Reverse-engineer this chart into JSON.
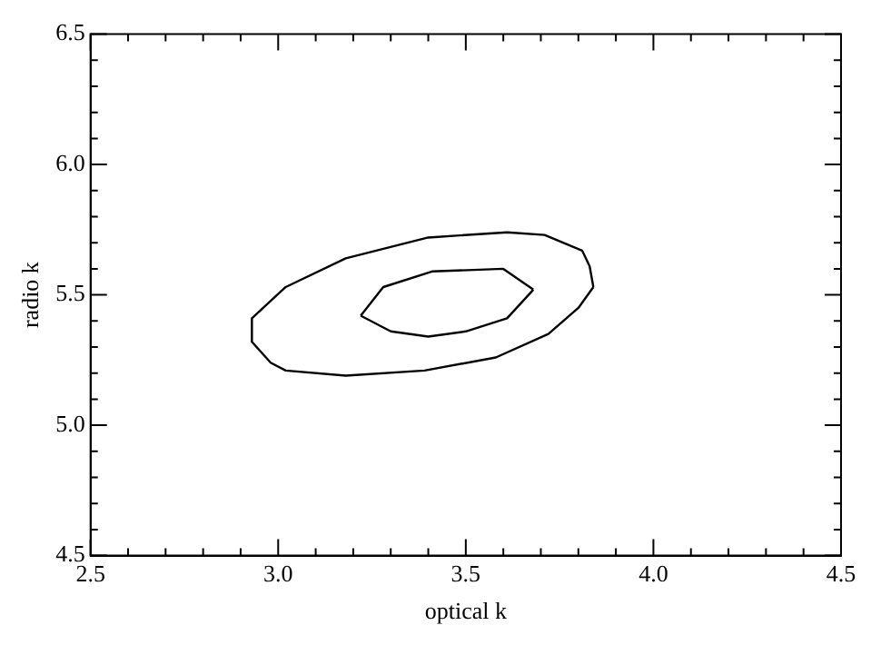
{
  "chart_data": {
    "type": "line",
    "xlabel": "optical k",
    "ylabel": "radio k",
    "xlim": [
      2.5,
      4.5
    ],
    "ylim": [
      4.5,
      6.5
    ],
    "xticks": [
      2.5,
      {
        "value": 2.6,
        "label": null
      },
      {
        "value": 2.7,
        "label": null
      },
      {
        "value": 2.8,
        "label": null
      },
      {
        "value": 2.9,
        "label": null
      },
      {
        "value": 3.0,
        "label": "3.0"
      },
      {
        "value": 3.1,
        "label": null
      },
      {
        "value": 3.2,
        "label": null
      },
      {
        "value": 3.3,
        "label": null
      },
      {
        "value": 3.4,
        "label": null
      },
      3.5,
      {
        "value": 3.6,
        "label": null
      },
      {
        "value": 3.7,
        "label": null
      },
      {
        "value": 3.8,
        "label": null
      },
      {
        "value": 3.9,
        "label": null
      },
      {
        "value": 4.0,
        "label": "4.0"
      },
      {
        "value": 4.1,
        "label": null
      },
      {
        "value": 4.2,
        "label": null
      },
      {
        "value": 4.3,
        "label": null
      },
      {
        "value": 4.4,
        "label": null
      },
      4.5
    ],
    "yticks": [
      4.5,
      {
        "value": 4.6,
        "label": null
      },
      {
        "value": 4.7,
        "label": null
      },
      {
        "value": 4.8,
        "label": null
      },
      {
        "value": 4.9,
        "label": null
      },
      {
        "value": 5.0,
        "label": "5.0"
      },
      {
        "value": 5.1,
        "label": null
      },
      {
        "value": 5.2,
        "label": null
      },
      {
        "value": 5.3,
        "label": null
      },
      {
        "value": 5.4,
        "label": null
      },
      5.5,
      {
        "value": 5.6,
        "label": null
      },
      {
        "value": 5.7,
        "label": null
      },
      {
        "value": 5.8,
        "label": null
      },
      {
        "value": 5.9,
        "label": null
      },
      {
        "value": 6.0,
        "label": "6.0"
      },
      {
        "value": 6.1,
        "label": null
      },
      {
        "value": 6.2,
        "label": null
      },
      {
        "value": 6.3,
        "label": null
      },
      {
        "value": 6.4,
        "label": null
      },
      6.5
    ],
    "grid": false,
    "legend": false,
    "marker": "none",
    "line_style": "solid",
    "series": [
      {
        "color": "#000000",
        "x": [
          2.93,
          2.93,
          2.98,
          3.02,
          3.18,
          3.39,
          3.58,
          3.72,
          3.8,
          3.84
        ],
        "values": [
          5.41,
          5.32,
          5.24,
          5.21,
          5.19,
          5.21,
          5.26,
          5.35,
          5.45,
          5.53
        ]
      },
      {
        "color": "#000000",
        "x": [
          2.93,
          3.02,
          3.18,
          3.4,
          3.61,
          3.71,
          3.81,
          3.83,
          3.84
        ],
        "values": [
          5.41,
          5.53,
          5.64,
          5.72,
          5.74,
          5.73,
          5.67,
          5.61,
          5.53
        ]
      },
      {
        "color": "#000000",
        "x": [
          3.22,
          3.3,
          3.4,
          3.5,
          3.61,
          3.68
        ],
        "values": [
          5.42,
          5.36,
          5.34,
          5.36,
          5.41,
          5.52
        ]
      },
      {
        "color": "#000000",
        "x": [
          3.22,
          3.28,
          3.41,
          3.6,
          3.68
        ],
        "values": [
          5.42,
          5.53,
          5.59,
          5.6,
          5.52
        ]
      }
    ]
  }
}
